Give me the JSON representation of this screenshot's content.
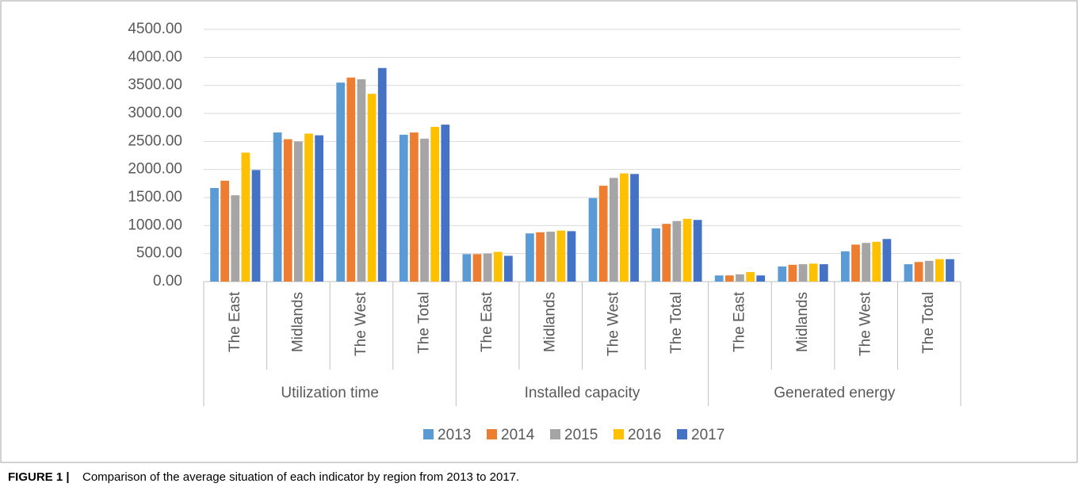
{
  "chart_data": {
    "type": "bar",
    "groups": [
      {
        "label": "Utilization time",
        "categories": [
          "The East",
          "Midlands",
          "The West",
          "The Total"
        ]
      },
      {
        "label": "Installed capacity",
        "categories": [
          "The East",
          "Midlands",
          "The West",
          "The Total"
        ]
      },
      {
        "label": "Generated energy",
        "categories": [
          "The East",
          "Midlands",
          "The West",
          "The Total"
        ]
      }
    ],
    "series": [
      {
        "name": "2013",
        "color": "#5b9bd5",
        "values": [
          1670,
          2660,
          3550,
          2620,
          490,
          860,
          1490,
          950,
          110,
          270,
          540,
          310
        ]
      },
      {
        "name": "2014",
        "color": "#ed7d31",
        "values": [
          1800,
          2540,
          3640,
          2660,
          490,
          880,
          1710,
          1030,
          110,
          300,
          660,
          350
        ]
      },
      {
        "name": "2015",
        "color": "#a5a5a5",
        "values": [
          1540,
          2500,
          3610,
          2550,
          500,
          890,
          1850,
          1080,
          130,
          310,
          690,
          370
        ]
      },
      {
        "name": "2016",
        "color": "#ffc000",
        "values": [
          2300,
          2640,
          3350,
          2760,
          530,
          910,
          1930,
          1120,
          170,
          320,
          710,
          400
        ]
      },
      {
        "name": "2017",
        "color": "#4472c4",
        "values": [
          1990,
          2610,
          3810,
          2800,
          460,
          900,
          1920,
          1100,
          110,
          310,
          760,
          400
        ]
      }
    ],
    "ylim": [
      0,
      4500
    ],
    "yticks": [
      {
        "value": 0,
        "label": "0.00"
      },
      {
        "value": 500,
        "label": "500.00"
      },
      {
        "value": 1000,
        "label": "1000.00"
      },
      {
        "value": 1500,
        "label": "1500.00"
      },
      {
        "value": 2000,
        "label": "2000.00"
      },
      {
        "value": 2500,
        "label": "2500.00"
      },
      {
        "value": 3000,
        "label": "3000.00"
      },
      {
        "value": 3500,
        "label": "3500.00"
      },
      {
        "value": 4000,
        "label": "4000.00"
      },
      {
        "value": 4500,
        "label": "4500.00"
      }
    ],
    "grid": true,
    "legend": "bottom",
    "caption": {
      "label": "FIGURE 1 |",
      "text": "Comparison of the average situation of each indicator by region from 2013 to 2017."
    }
  }
}
